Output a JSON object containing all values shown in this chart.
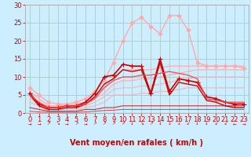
{
  "background_color": "#cceeff",
  "grid_color": "#aacccc",
  "xlabel": "Vent moyen/en rafales ( km/h )",
  "xlim": [
    -0.5,
    23.5
  ],
  "ylim": [
    0,
    30
  ],
  "yticks": [
    0,
    5,
    10,
    15,
    20,
    25,
    30
  ],
  "xticks": [
    0,
    1,
    2,
    3,
    4,
    5,
    6,
    7,
    8,
    9,
    10,
    11,
    12,
    13,
    14,
    15,
    16,
    17,
    18,
    19,
    20,
    21,
    22,
    23
  ],
  "series": [
    {
      "comment": "light pink top curve - peaks 25-27",
      "x": [
        0,
        1,
        2,
        3,
        4,
        5,
        6,
        7,
        8,
        9,
        10,
        11,
        12,
        13,
        14,
        15,
        16,
        17,
        18,
        19,
        20,
        21,
        22,
        23
      ],
      "y": [
        7,
        5,
        3,
        2.5,
        2.5,
        3,
        4,
        6,
        9,
        14,
        20,
        25,
        26.5,
        24,
        22,
        27,
        27,
        23,
        14,
        13,
        13,
        13,
        13,
        12.5
      ],
      "color": "#ffaaaa",
      "lw": 1.0,
      "marker": "D",
      "ms": 2.5,
      "alpha": 1.0
    },
    {
      "comment": "medium pink curve 2",
      "x": [
        0,
        1,
        2,
        3,
        4,
        5,
        6,
        7,
        8,
        9,
        10,
        11,
        12,
        13,
        14,
        15,
        16,
        17,
        18,
        19,
        20,
        21,
        22,
        23
      ],
      "y": [
        6,
        4,
        2,
        2,
        2,
        2.5,
        3,
        5,
        7,
        10,
        12,
        12,
        12,
        12,
        12.5,
        13,
        13,
        13,
        13,
        13,
        13,
        13,
        13,
        13
      ],
      "color": "#ffaaaa",
      "lw": 1.0,
      "marker": null,
      "ms": 0,
      "alpha": 0.9
    },
    {
      "comment": "medium pink curve 3",
      "x": [
        0,
        1,
        2,
        3,
        4,
        5,
        6,
        7,
        8,
        9,
        10,
        11,
        12,
        13,
        14,
        15,
        16,
        17,
        18,
        19,
        20,
        21,
        22,
        23
      ],
      "y": [
        5,
        3,
        1.5,
        1.5,
        1.5,
        2,
        2.5,
        4,
        5.5,
        8,
        9,
        9,
        9.5,
        9.5,
        10,
        10.5,
        11,
        11.5,
        12,
        12,
        12,
        12,
        12,
        12
      ],
      "color": "#ffaaaa",
      "lw": 1.0,
      "marker": null,
      "ms": 0,
      "alpha": 0.8
    },
    {
      "comment": "medium pink curve 4",
      "x": [
        0,
        1,
        2,
        3,
        4,
        5,
        6,
        7,
        8,
        9,
        10,
        11,
        12,
        13,
        14,
        15,
        16,
        17,
        18,
        19,
        20,
        21,
        22,
        23
      ],
      "y": [
        4,
        2.5,
        1,
        1,
        1,
        1.5,
        2,
        3,
        4.5,
        6.5,
        7,
        7,
        7.5,
        7.5,
        8,
        8.5,
        9,
        9.5,
        10,
        10,
        10,
        10,
        10,
        10
      ],
      "color": "#ffaaaa",
      "lw": 1.0,
      "marker": null,
      "ms": 0,
      "alpha": 0.7
    },
    {
      "comment": "medium pink curve 5 lower",
      "x": [
        0,
        1,
        2,
        3,
        4,
        5,
        6,
        7,
        8,
        9,
        10,
        11,
        12,
        13,
        14,
        15,
        16,
        17,
        18,
        19,
        20,
        21,
        22,
        23
      ],
      "y": [
        3,
        2,
        0.5,
        0.5,
        0.5,
        1,
        1.5,
        2,
        3,
        5,
        5,
        5,
        5.5,
        5.5,
        6,
        6,
        6.5,
        7,
        7,
        7,
        7,
        7,
        7,
        7
      ],
      "color": "#ffaaaa",
      "lw": 1.0,
      "marker": null,
      "ms": 0,
      "alpha": 0.7
    },
    {
      "comment": "dark red with + markers - main line",
      "x": [
        0,
        1,
        2,
        3,
        4,
        5,
        6,
        7,
        8,
        9,
        10,
        11,
        12,
        13,
        14,
        15,
        16,
        17,
        18,
        19,
        20,
        21,
        22,
        23
      ],
      "y": [
        5.5,
        2.5,
        1.5,
        1.5,
        2,
        2,
        3,
        5.5,
        10,
        10.5,
        13.5,
        13,
        13,
        5.5,
        15,
        6,
        9.5,
        9,
        8.5,
        4.5,
        4,
        3,
        2.5,
        2.5
      ],
      "color": "#cc0000",
      "lw": 1.2,
      "marker": "+",
      "ms": 5,
      "alpha": 1.0
    },
    {
      "comment": "dark red no marker",
      "x": [
        0,
        1,
        2,
        3,
        4,
        5,
        6,
        7,
        8,
        9,
        10,
        11,
        12,
        13,
        14,
        15,
        16,
        17,
        18,
        19,
        20,
        21,
        22,
        23
      ],
      "y": [
        5,
        2,
        1,
        1,
        1.5,
        1.5,
        2.5,
        4.5,
        8,
        9.5,
        12,
        11.5,
        12,
        5,
        14,
        5,
        8.5,
        8,
        7.5,
        3.5,
        3,
        2,
        1.5,
        1.5
      ],
      "color": "#cc0000",
      "lw": 1.0,
      "marker": null,
      "ms": 0,
      "alpha": 1.0
    },
    {
      "comment": "medium red curve",
      "x": [
        0,
        1,
        2,
        3,
        4,
        5,
        6,
        7,
        8,
        9,
        10,
        11,
        12,
        13,
        14,
        15,
        16,
        17,
        18,
        19,
        20,
        21,
        22,
        23
      ],
      "y": [
        5,
        3,
        1.5,
        1.5,
        2,
        2,
        2.5,
        4,
        7,
        9,
        10,
        10,
        10.5,
        10.5,
        11,
        11.5,
        11,
        10.5,
        9.5,
        4,
        3.5,
        3,
        3,
        3
      ],
      "color": "#ff4444",
      "lw": 1.0,
      "marker": null,
      "ms": 0,
      "alpha": 0.9
    },
    {
      "comment": "lower flat red line",
      "x": [
        0,
        1,
        2,
        3,
        4,
        5,
        6,
        7,
        8,
        9,
        10,
        11,
        12,
        13,
        14,
        15,
        16,
        17,
        18,
        19,
        20,
        21,
        22,
        23
      ],
      "y": [
        1.5,
        1,
        0.5,
        0.5,
        0.5,
        0.5,
        1,
        1,
        1.5,
        1.5,
        2,
        2,
        2,
        2,
        2,
        2,
        2,
        2,
        2,
        2,
        2,
        2,
        2,
        2
      ],
      "color": "#cc0000",
      "lw": 0.8,
      "marker": null,
      "ms": 0,
      "alpha": 0.8
    },
    {
      "comment": "lowest near-zero line",
      "x": [
        0,
        1,
        2,
        3,
        4,
        5,
        6,
        7,
        8,
        9,
        10,
        11,
        12,
        13,
        14,
        15,
        16,
        17,
        18,
        19,
        20,
        21,
        22,
        23
      ],
      "y": [
        0.5,
        0.3,
        0.2,
        0.2,
        0.2,
        0.2,
        0.3,
        0.5,
        0.7,
        0.8,
        1,
        1,
        1,
        1,
        1,
        1,
        1,
        1,
        1,
        1,
        1,
        1,
        1,
        1
      ],
      "color": "#cc0000",
      "lw": 0.7,
      "marker": null,
      "ms": 0,
      "alpha": 0.7
    }
  ],
  "arrows": [
    "→",
    "→",
    "↗",
    "↘",
    "→",
    "↗",
    "→",
    "↗",
    "↗",
    "↗",
    "↗",
    "↓",
    "↘",
    "↗",
    "↓",
    "↓",
    "↓",
    "↙",
    "↓",
    "↓",
    "↙",
    "↙",
    "←",
    "→"
  ],
  "xlabel_fontsize": 7,
  "tick_fontsize": 6
}
